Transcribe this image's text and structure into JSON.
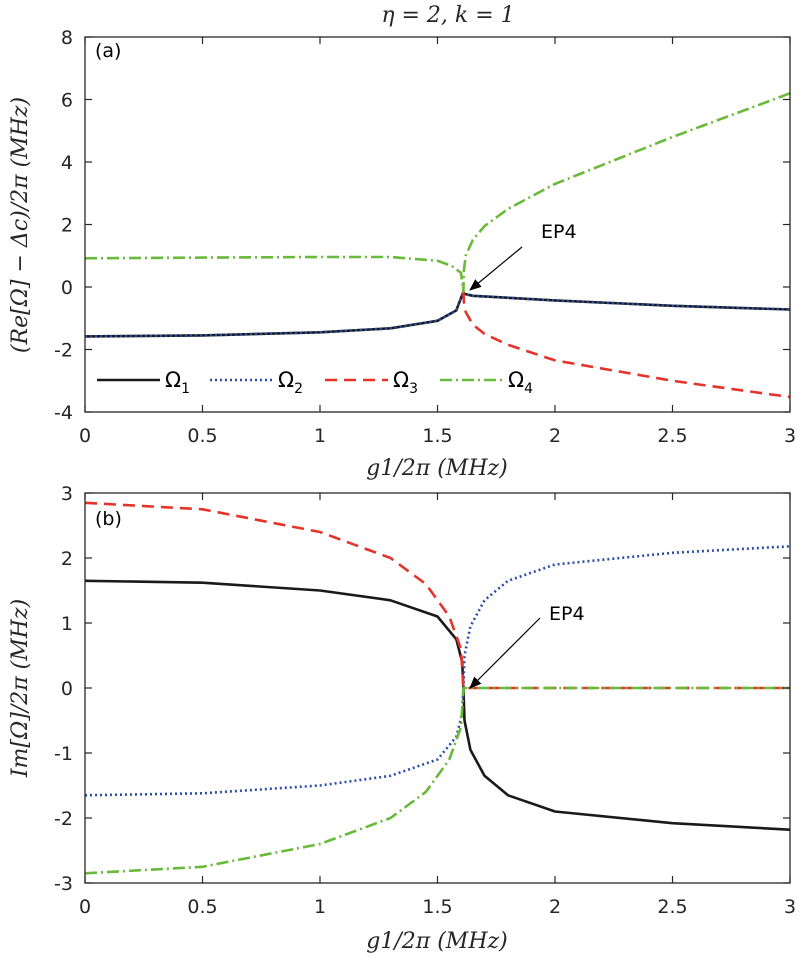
{
  "title": "η = 2, k = 1",
  "colors": {
    "omega1": "#1a1a1a",
    "omega2": "#2b4fa8",
    "omega3": "#e5332a",
    "omega4": "#69b93a",
    "axes": "#262626"
  },
  "legend": {
    "labels": [
      "Ω1",
      "Ω2",
      "Ω3",
      "Ω4"
    ],
    "items": [
      {
        "base": "Ω",
        "sub": "1"
      },
      {
        "base": "Ω",
        "sub": "2"
      },
      {
        "base": "Ω",
        "sub": "3"
      },
      {
        "base": "Ω",
        "sub": "4"
      }
    ]
  },
  "chart_data": [
    {
      "type": "line",
      "panel_label": "(a)",
      "xlabel": "g1/2π (MHz)",
      "ylabel": "(Re[Ω] − Δc)/2π (MHz)",
      "xlim": [
        0,
        3
      ],
      "ylim": [
        -4,
        8
      ],
      "xticks": [
        "0",
        "0.5",
        "1",
        "1.5",
        "2",
        "2.5",
        "3"
      ],
      "yticks": [
        "-4",
        "-2",
        "0",
        "2",
        "4",
        "6",
        "8"
      ],
      "annotation": {
        "text": "EP4",
        "x": 1.61,
        "y": -0.08
      },
      "series": [
        {
          "name": "Ω1",
          "x": [
            0,
            0.5,
            1,
            1.3,
            1.5,
            1.58,
            1.61,
            1.615,
            1.65,
            2,
            2.5,
            3
          ],
          "y": [
            -1.58,
            -1.55,
            -1.45,
            -1.32,
            -1.08,
            -0.75,
            -0.15,
            -0.22,
            -0.28,
            -0.43,
            -0.6,
            -0.72
          ]
        },
        {
          "name": "Ω2",
          "x": [
            0,
            0.5,
            1,
            1.3,
            1.5,
            1.58,
            1.61,
            1.615,
            1.65,
            2,
            2.5,
            3
          ],
          "y": [
            -1.58,
            -1.55,
            -1.45,
            -1.32,
            -1.08,
            -0.75,
            -0.15,
            -0.22,
            -0.28,
            -0.43,
            -0.6,
            -0.72
          ]
        },
        {
          "name": "Ω3",
          "x": [
            1.61,
            1.612,
            1.62,
            1.65,
            1.7,
            1.8,
            2,
            2.5,
            3
          ],
          "y": [
            -0.15,
            -0.45,
            -0.8,
            -1.2,
            -1.5,
            -1.85,
            -2.35,
            -3.0,
            -3.52
          ]
        },
        {
          "name": "Ω4",
          "x": [
            0,
            0.5,
            1,
            1.3,
            1.5,
            1.56,
            1.6,
            1.61,
            1.612,
            1.62,
            1.65,
            1.7,
            1.8,
            2,
            2.5,
            3
          ],
          "y": [
            0.92,
            0.94,
            0.96,
            0.96,
            0.84,
            0.68,
            0.45,
            -0.15,
            0.5,
            1.0,
            1.5,
            1.95,
            2.5,
            3.3,
            4.8,
            6.2
          ]
        }
      ]
    },
    {
      "type": "line",
      "panel_label": "(b)",
      "xlabel": "g1/2π (MHz)",
      "ylabel": "Im[Ω]/2π (MHz)",
      "xlim": [
        0,
        3
      ],
      "ylim": [
        -3,
        3
      ],
      "xticks": [
        "0",
        "0.5",
        "1",
        "1.5",
        "2",
        "2.5",
        "3"
      ],
      "yticks": [
        "-3",
        "-2",
        "-1",
        "0",
        "1",
        "2",
        "3"
      ],
      "annotation": {
        "text": "EP4",
        "x": 1.61,
        "y": 0
      },
      "series": [
        {
          "name": "Ω1",
          "x": [
            0,
            0.5,
            1,
            1.3,
            1.5,
            1.58,
            1.605,
            1.61,
            1.615,
            1.64,
            1.7,
            1.8,
            2,
            2.5,
            3
          ],
          "y": [
            1.65,
            1.62,
            1.5,
            1.35,
            1.1,
            0.75,
            0.4,
            0,
            -0.5,
            -0.95,
            -1.35,
            -1.65,
            -1.9,
            -2.08,
            -2.18
          ]
        },
        {
          "name": "Ω2",
          "x": [
            0,
            0.5,
            1,
            1.3,
            1.5,
            1.58,
            1.605,
            1.61,
            1.615,
            1.64,
            1.7,
            1.8,
            2,
            2.5,
            3
          ],
          "y": [
            -1.65,
            -1.62,
            -1.5,
            -1.35,
            -1.1,
            -0.75,
            -0.4,
            0,
            0.5,
            0.95,
            1.35,
            1.65,
            1.9,
            2.08,
            2.18
          ]
        },
        {
          "name": "Ω3",
          "x": [
            0,
            0.5,
            1,
            1.3,
            1.45,
            1.55,
            1.6,
            1.61,
            2,
            2.5,
            3
          ],
          "y": [
            2.85,
            2.75,
            2.4,
            2.0,
            1.6,
            1.1,
            0.6,
            0,
            0,
            0,
            0
          ]
        },
        {
          "name": "Ω4",
          "x": [
            0,
            0.5,
            1,
            1.3,
            1.45,
            1.55,
            1.6,
            1.61,
            2,
            2.5,
            3
          ],
          "y": [
            -2.85,
            -2.75,
            -2.4,
            -2.0,
            -1.6,
            -1.1,
            -0.6,
            0,
            0,
            0,
            0
          ]
        }
      ]
    }
  ]
}
